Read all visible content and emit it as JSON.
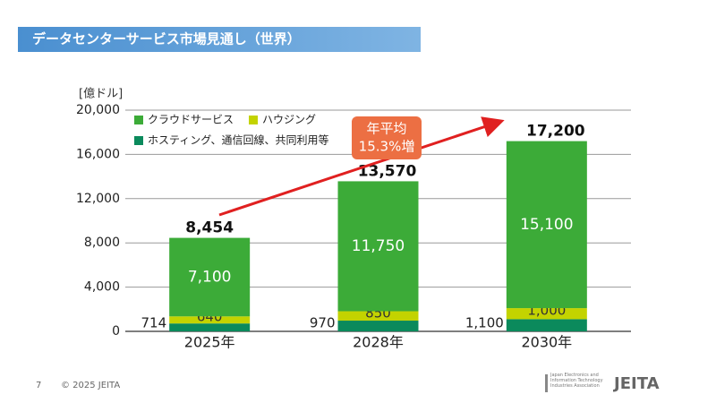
{
  "header": {
    "title": "データセンターサービス市場見通し（世界）"
  },
  "chart_data": {
    "type": "stacked-bar",
    "y_unit_label": "[億ドル]",
    "categories": [
      "2025年",
      "2028年",
      "2030年"
    ],
    "series": [
      {
        "name": "ホスティング、通信回線、共同利用等",
        "color": "#0b8a5c",
        "values": [
          714,
          970,
          1100
        ],
        "value_labels": [
          "714",
          "970",
          "1,100"
        ]
      },
      {
        "name": "ハウジング",
        "color": "#c3d300",
        "values": [
          640,
          850,
          1000
        ],
        "value_labels": [
          "640",
          "850",
          "1,000"
        ]
      },
      {
        "name": "クラウドサービス",
        "color": "#3cab38",
        "values": [
          7100,
          11750,
          15100
        ],
        "value_labels": [
          "7,100",
          "11,750",
          "15,100"
        ]
      }
    ],
    "totals": [
      8454,
      13570,
      17200
    ],
    "total_labels": [
      "8,454",
      "13,570",
      "17,200"
    ],
    "annotation": [
      "年平均",
      "15.3%増"
    ],
    "ylim": [
      0,
      20000
    ],
    "yticks": [
      0,
      {
        "value": 4000,
        "label": "4,000"
      },
      {
        "value": 8000,
        "label": "8,000"
      },
      {
        "value": 12000,
        "label": "12,000"
      },
      {
        "value": 16000,
        "label": "16,000"
      },
      {
        "value": 20000,
        "label": "20,000"
      }
    ],
    "grid": true
  },
  "footer": {
    "page": "7",
    "copyright": "© 2025 JEITA",
    "org": "Japan Electronics and Information Technology Industries Association",
    "logo": "JEITA"
  }
}
